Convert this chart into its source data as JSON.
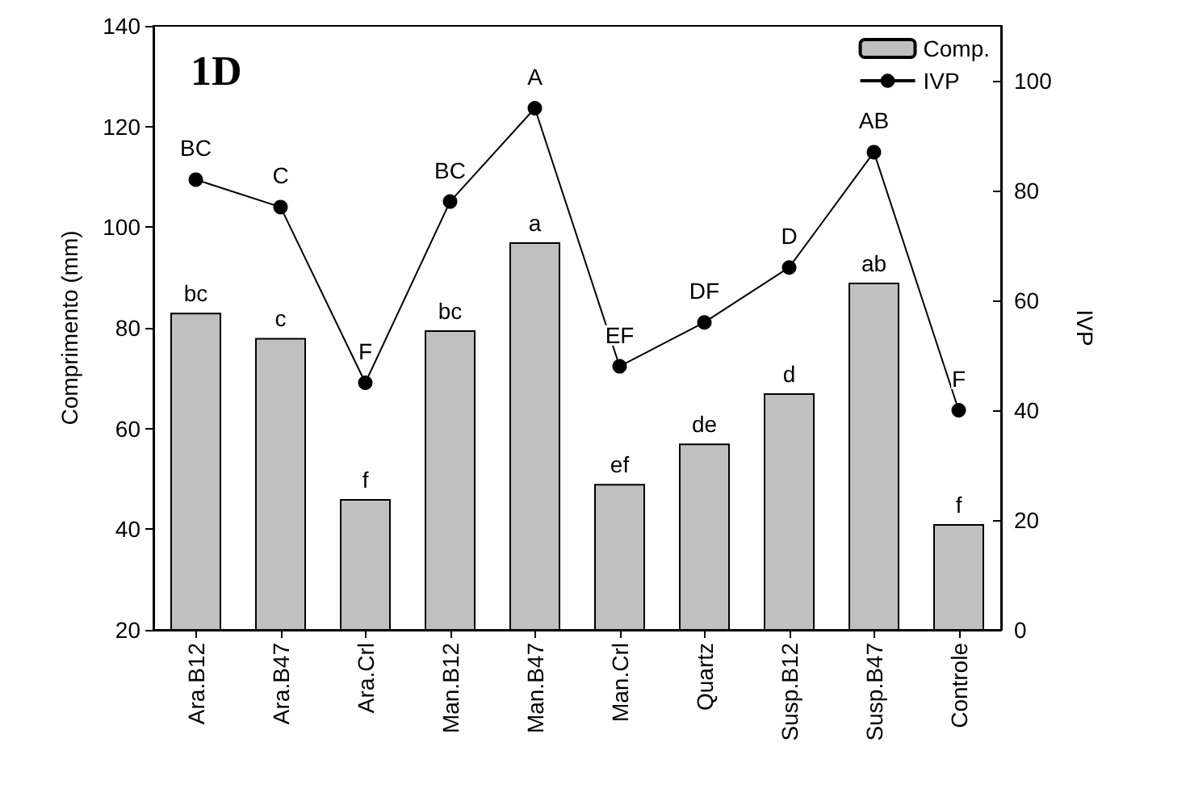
{
  "chart_data": {
    "type": "bar",
    "title": "1D",
    "ylabel": "Comprimento (mm)",
    "y2label": "IVP",
    "categories": [
      "Ara.B12",
      "Ara.B47",
      "Ara.Crl",
      "Man.B12",
      "Man.B47",
      "Man.Crl",
      "Quartz",
      "Susp.B12",
      "Susp.B47",
      "Controle"
    ],
    "series": [
      {
        "name": "Comp.",
        "color": "#c0c0c0",
        "values": [
          83,
          78,
          46,
          79.5,
          97,
          49,
          57,
          67,
          89,
          41
        ],
        "value_labels": [
          "bc",
          "c",
          "f",
          "bc",
          "a",
          "ef",
          "de",
          "d",
          "ab",
          "f"
        ]
      },
      {
        "name": "IVP",
        "type": "line",
        "axis": "y2",
        "color": "#000000",
        "marker": "circle",
        "values": [
          82,
          77,
          45,
          78,
          95,
          48,
          56,
          66,
          87,
          40
        ],
        "value_labels": [
          "BC",
          "C",
          "F",
          "BC",
          "A",
          "EF",
          "DF",
          "D",
          "AB",
          "F"
        ]
      }
    ],
    "ylim": [
      20,
      140
    ],
    "yticks": [
      20,
      40,
      60,
      80,
      100,
      120,
      140
    ],
    "y2lim": [
      0,
      110
    ],
    "y2ticks": [
      0,
      20,
      40,
      60,
      80,
      100
    ],
    "legend": "top right",
    "grid": false
  }
}
